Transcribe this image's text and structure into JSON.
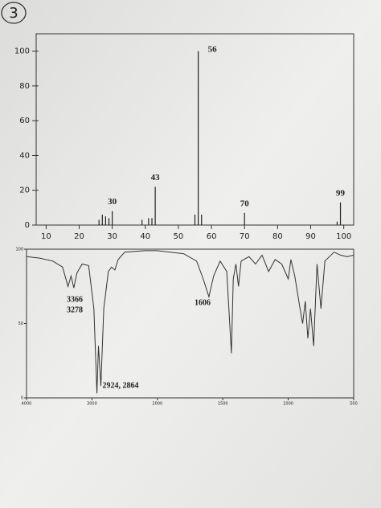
{
  "page_label": "3",
  "chart_data": [
    {
      "type": "bar",
      "color": "#222222",
      "x": [
        26,
        27,
        28,
        29,
        30,
        39,
        41,
        42,
        43,
        55,
        56,
        57,
        70,
        98,
        99
      ],
      "values": [
        3,
        6,
        5,
        4,
        8,
        3,
        4,
        4,
        22,
        6,
        100,
        6,
        7,
        2,
        13
      ],
      "labeled": [
        4,
        8,
        10,
        12,
        14
      ],
      "xlim": [
        7,
        103
      ],
      "xticks": [
        10,
        20,
        30,
        40,
        50,
        60,
        70,
        80,
        90,
        100
      ],
      "ylim": [
        0,
        110
      ],
      "yticks": [
        0,
        20,
        40,
        60,
        80,
        100
      ]
    },
    {
      "type": "line",
      "color": "#333333",
      "x": [
        4000,
        3800,
        3600,
        3450,
        3366,
        3320,
        3278,
        3230,
        3150,
        3050,
        2970,
        2924,
        2900,
        2864,
        2820,
        2750,
        2700,
        2650,
        2600,
        2500,
        2200,
        2000,
        1900,
        1800,
        1700,
        1650,
        1606,
        1570,
        1520,
        1470,
        1434,
        1420,
        1400,
        1380,
        1360,
        1300,
        1250,
        1200,
        1150,
        1100,
        1050,
        1000,
        980,
        950,
        910,
        890,
        870,
        850,
        830,
        806,
        780,
        750,
        720,
        650,
        600,
        550,
        500
      ],
      "values": [
        95,
        94,
        92,
        88,
        75,
        82,
        74,
        84,
        90,
        89,
        60,
        3,
        35,
        8,
        60,
        85,
        88,
        86,
        93,
        98,
        99,
        99,
        98,
        97,
        92,
        80,
        68,
        82,
        92,
        85,
        30,
        80,
        90,
        75,
        92,
        95,
        90,
        96,
        85,
        93,
        90,
        80,
        93,
        82,
        60,
        50,
        65,
        40,
        60,
        35,
        90,
        60,
        92,
        98,
        96,
        95,
        96
      ],
      "annotations": [
        "3366",
        "3278",
        "1606",
        "2924, 2864"
      ],
      "xlim": [
        4000,
        500
      ],
      "xticks": [
        4000,
        3000,
        2000,
        1500,
        1000,
        500
      ],
      "ylim": [
        0,
        100
      ],
      "yticks": [
        0,
        50,
        100
      ]
    }
  ]
}
